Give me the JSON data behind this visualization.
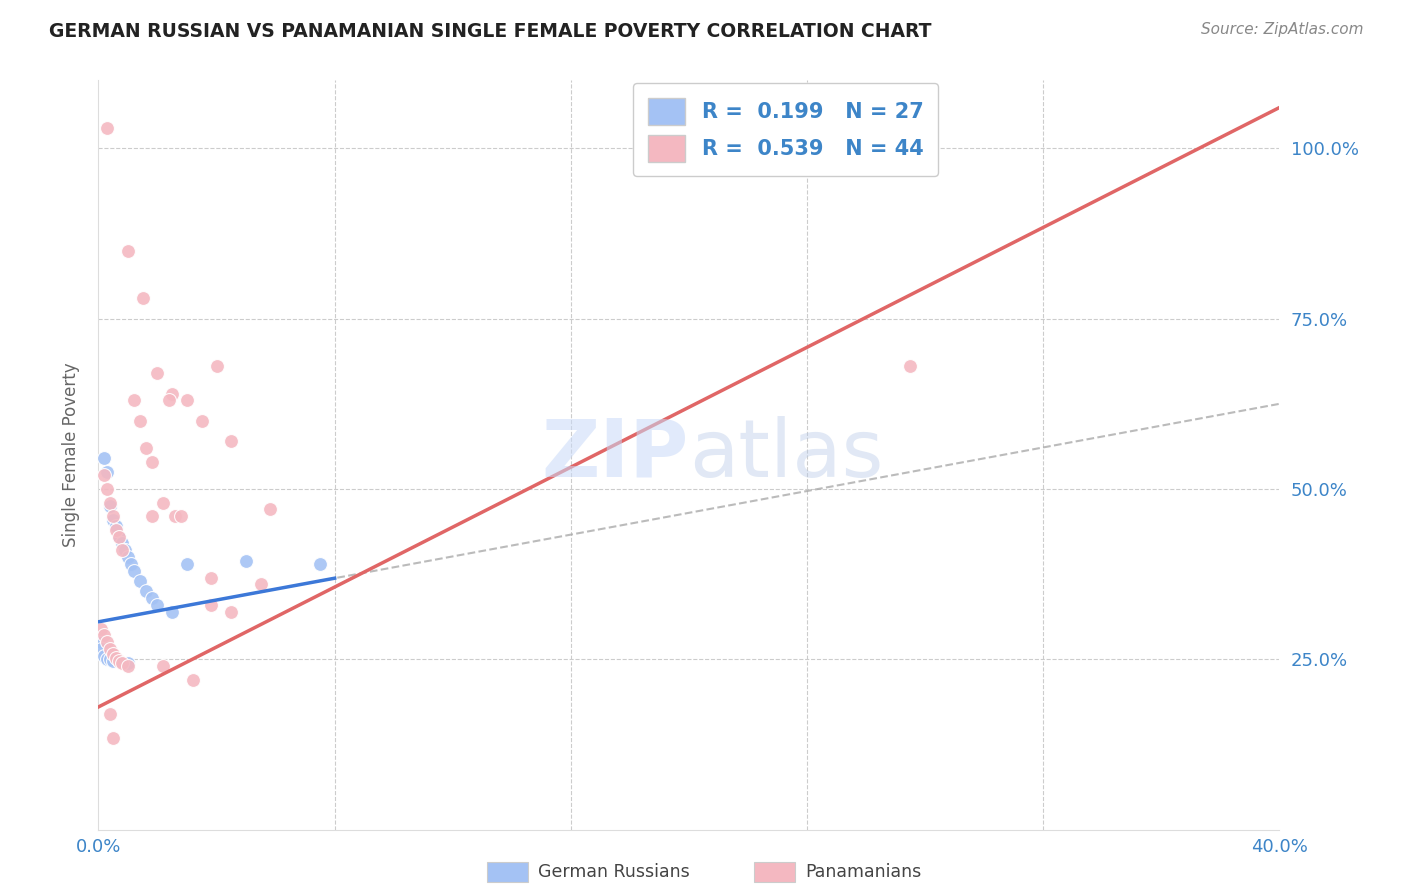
{
  "title": "GERMAN RUSSIAN VS PANAMANIAN SINGLE FEMALE POVERTY CORRELATION CHART",
  "source": "Source: ZipAtlas.com",
  "ylabel": "Single Female Poverty",
  "blue_color": "#a4c2f4",
  "pink_color": "#f4b8c1",
  "blue_line_color": "#3c78d8",
  "pink_line_color": "#e06666",
  "dashed_line_color": "#aaaaaa",
  "watermark": "ZIPatlas",
  "xlim": [
    0.0,
    0.4
  ],
  "ylim": [
    0.0,
    1.1
  ],
  "blue_trend_x": [
    0.0,
    0.4
  ],
  "blue_trend_y": [
    0.305,
    0.625
  ],
  "pink_trend_x": [
    0.0,
    0.4
  ],
  "pink_trend_y": [
    0.18,
    1.06
  ],
  "blue_scatter_x": [
    0.002,
    0.003,
    0.004,
    0.005,
    0.006,
    0.007,
    0.008,
    0.009,
    0.01,
    0.011,
    0.012,
    0.014,
    0.016,
    0.018,
    0.02,
    0.025,
    0.03,
    0.05,
    0.001,
    0.001,
    0.002,
    0.003,
    0.004,
    0.005,
    0.007,
    0.01,
    0.075
  ],
  "blue_scatter_y": [
    0.545,
    0.525,
    0.475,
    0.455,
    0.445,
    0.43,
    0.42,
    0.41,
    0.4,
    0.39,
    0.38,
    0.365,
    0.35,
    0.34,
    0.33,
    0.32,
    0.39,
    0.395,
    0.275,
    0.265,
    0.255,
    0.25,
    0.25,
    0.248,
    0.248,
    0.245,
    0.39
  ],
  "pink_scatter_x": [
    0.003,
    0.01,
    0.015,
    0.02,
    0.025,
    0.03,
    0.035,
    0.04,
    0.045,
    0.012,
    0.014,
    0.016,
    0.018,
    0.022,
    0.024,
    0.026,
    0.002,
    0.003,
    0.004,
    0.005,
    0.006,
    0.007,
    0.008,
    0.001,
    0.002,
    0.003,
    0.004,
    0.005,
    0.006,
    0.007,
    0.008,
    0.01,
    0.038,
    0.055,
    0.038,
    0.045,
    0.028,
    0.018,
    0.058,
    0.022,
    0.032,
    0.004,
    0.275,
    0.005
  ],
  "pink_scatter_y": [
    1.03,
    0.85,
    0.78,
    0.67,
    0.64,
    0.63,
    0.6,
    0.68,
    0.57,
    0.63,
    0.6,
    0.56,
    0.54,
    0.48,
    0.63,
    0.46,
    0.52,
    0.5,
    0.48,
    0.46,
    0.44,
    0.43,
    0.41,
    0.295,
    0.285,
    0.275,
    0.265,
    0.258,
    0.252,
    0.248,
    0.245,
    0.24,
    0.37,
    0.36,
    0.33,
    0.32,
    0.46,
    0.46,
    0.47,
    0.24,
    0.22,
    0.17,
    0.68,
    0.135
  ],
  "xticks": [
    0.0,
    0.08,
    0.16,
    0.24,
    0.32,
    0.4
  ],
  "yticks": [
    0.25,
    0.5,
    0.75,
    1.0
  ],
  "ytick_labels": [
    "25.0%",
    "50.0%",
    "75.0%",
    "100.0%"
  ],
  "xtick_labels_show": [
    "0.0%",
    "40.0%"
  ],
  "legend_r1": "R =  0.199",
  "legend_n1": "N = 27",
  "legend_r2": "R =  0.539",
  "legend_n2": "N = 44"
}
